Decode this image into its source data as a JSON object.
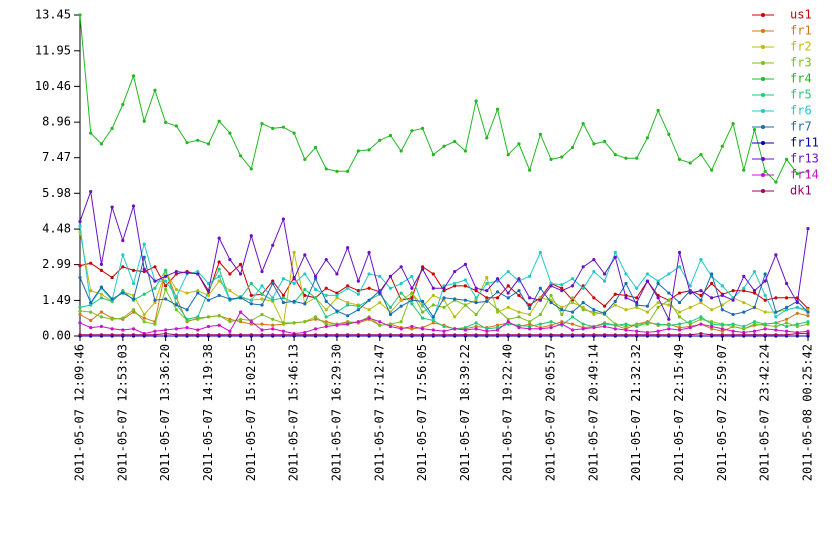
{
  "chart_data": {
    "type": "line",
    "categories": [
      "2011-05-07 12:09:46",
      null,
      null,
      null,
      "2011-05-07 12:53:03",
      null,
      null,
      null,
      "2011-05-07 13:36:20",
      null,
      null,
      null,
      "2011-05-07 14:19:38",
      null,
      null,
      null,
      "2011-05-07 15:02:55",
      null,
      null,
      null,
      "2011-05-07 15:46:13",
      null,
      null,
      null,
      "2011-05-07 16:29:30",
      null,
      null,
      null,
      "2011-05-07 17:12:47",
      null,
      null,
      null,
      "2011-05-07 17:56:05",
      null,
      null,
      null,
      "2011-05-07 18:39:22",
      null,
      null,
      null,
      "2011-05-07 19:22:40",
      null,
      null,
      null,
      "2011-05-07 20:05:57",
      null,
      null,
      null,
      "2011-05-07 20:49:14",
      null,
      null,
      null,
      "2011-05-07 21:32:32",
      null,
      null,
      null,
      "2011-05-07 22:15:49",
      null,
      null,
      null,
      "2011-05-07 22:59:07",
      null,
      null,
      null,
      "2011-05-07 23:42:24",
      null,
      null,
      null,
      "2011-05-08 00:25:42"
    ],
    "ylim": [
      0,
      13.45
    ],
    "yticks": [
      {
        "value": 0,
        "label": "0.00"
      },
      1.49,
      2.99,
      4.48,
      5.98,
      7.47,
      8.96,
      10.46,
      11.95,
      13.45
    ],
    "legend": "right",
    "series": [
      {
        "name": "us1",
        "color": "#cc0000",
        "values": [
          2.95,
          3.05,
          2.75,
          2.45,
          2.9,
          2.75,
          2.7,
          2.9,
          2.1,
          2.6,
          2.7,
          2.6,
          1.8,
          3.1,
          2.6,
          3.0,
          1.7,
          1.75,
          2.3,
          1.7,
          2.45,
          1.7,
          1.6,
          2.0,
          1.8,
          2.1,
          1.9,
          2.0,
          1.85,
          2.5,
          1.5,
          1.6,
          2.9,
          2.6,
          1.9,
          2.1,
          2.1,
          1.9,
          1.6,
          1.6,
          2.1,
          1.7,
          1.3,
          1.6,
          2.2,
          2.0,
          1.5,
          2.1,
          1.6,
          1.25,
          1.75,
          1.7,
          1.6,
          2.3,
          1.7,
          1.5,
          1.8,
          1.9,
          1.7,
          2.2,
          1.75,
          1.9,
          1.9,
          1.8,
          1.5,
          1.6,
          1.6,
          1.6,
          1.15
        ]
      },
      {
        "name": "fr1",
        "color": "#d07818",
        "values": [
          0.9,
          0.65,
          1.0,
          0.75,
          0.7,
          1.0,
          0.75,
          0.6,
          2.75,
          1.6,
          0.6,
          0.75,
          0.8,
          0.85,
          0.7,
          0.6,
          0.5,
          0.5,
          0.45,
          0.5,
          0.55,
          0.6,
          0.7,
          0.6,
          0.5,
          0.6,
          0.55,
          0.7,
          0.45,
          0.5,
          0.35,
          0.3,
          0.35,
          0.55,
          0.45,
          0.3,
          0.3,
          0.4,
          0.35,
          0.45,
          0.55,
          0.4,
          0.5,
          0.35,
          0.45,
          0.6,
          0.5,
          0.35,
          0.4,
          0.55,
          0.45,
          0.3,
          0.5,
          0.6,
          0.45,
          0.5,
          0.35,
          0.4,
          0.5,
          0.3,
          0.2,
          0.4,
          0.3,
          0.45,
          0.5,
          0.55,
          0.7,
          0.95,
          0.85
        ]
      },
      {
        "name": "fr2",
        "color": "#bcbc10",
        "values": [
          4.35,
          1.9,
          1.75,
          1.45,
          1.85,
          1.7,
          0.9,
          1.4,
          2.7,
          1.95,
          1.8,
          1.9,
          1.7,
          2.3,
          1.9,
          1.6,
          1.5,
          1.55,
          1.45,
          0.5,
          3.5,
          1.35,
          1.6,
          1.1,
          1.6,
          1.4,
          1.3,
          1.1,
          1.4,
          1.0,
          1.5,
          1.8,
          1.25,
          1.7,
          1.5,
          0.8,
          1.3,
          1.5,
          2.45,
          1.0,
          1.2,
          1.0,
          0.9,
          1.6,
          1.5,
          1.2,
          1.4,
          1.2,
          0.9,
          1.0,
          1.3,
          1.1,
          1.2,
          1.0,
          1.4,
          1.3,
          1.0,
          1.2,
          1.4,
          1.1,
          1.3,
          1.6,
          1.4,
          1.2,
          1.0,
          1.0,
          1.1,
          1.2,
          1.1
        ]
      },
      {
        "name": "fr3",
        "color": "#78c020",
        "values": [
          1.05,
          1.0,
          0.8,
          0.7,
          0.75,
          1.1,
          0.6,
          0.5,
          1.95,
          1.1,
          0.65,
          0.7,
          0.8,
          0.85,
          0.6,
          0.7,
          0.65,
          0.9,
          0.7,
          0.55,
          0.55,
          0.6,
          0.8,
          0.5,
          0.5,
          0.55,
          0.6,
          0.8,
          0.45,
          0.5,
          0.6,
          1.8,
          1.0,
          1.3,
          1.2,
          1.5,
          1.3,
          0.9,
          1.5,
          1.1,
          0.7,
          0.8,
          0.6,
          0.9,
          1.7,
          0.9,
          1.6,
          1.1,
          1.0,
          0.9,
          0.5,
          0.4,
          0.5,
          0.5,
          1.2,
          1.5,
          0.8,
          0.5,
          0.7,
          0.6,
          0.5,
          0.4,
          0.3,
          0.5,
          0.45,
          0.4,
          0.55,
          0.4,
          0.5
        ]
      },
      {
        "name": "fr4",
        "color": "#22b822",
        "values": [
          13.45,
          8.5,
          8.05,
          8.7,
          9.7,
          10.9,
          9.0,
          10.3,
          8.95,
          8.8,
          8.1,
          8.2,
          8.05,
          9.0,
          8.5,
          7.55,
          7.0,
          8.9,
          8.7,
          8.75,
          8.5,
          7.4,
          7.9,
          7.0,
          6.9,
          6.9,
          7.75,
          7.8,
          8.2,
          8.4,
          7.75,
          8.6,
          8.7,
          7.6,
          7.95,
          8.15,
          7.75,
          9.85,
          8.3,
          9.5,
          7.6,
          8.05,
          6.95,
          8.45,
          7.4,
          7.5,
          7.9,
          8.9,
          8.05,
          8.15,
          7.6,
          7.45,
          7.45,
          8.3,
          9.45,
          8.45,
          7.4,
          7.25,
          7.6,
          6.95,
          7.95,
          8.9,
          6.95,
          8.65,
          6.9,
          6.45,
          7.4,
          6.8,
          6.9
        ]
      },
      {
        "name": "fr5",
        "color": "#22c87a",
        "values": [
          1.2,
          1.3,
          1.6,
          1.45,
          1.9,
          1.5,
          1.75,
          2.0,
          2.75,
          1.35,
          0.7,
          0.8,
          1.9,
          2.8,
          1.5,
          1.6,
          2.2,
          1.75,
          1.5,
          1.6,
          1.4,
          1.95,
          1.6,
          0.8,
          1.0,
          1.3,
          1.25,
          1.5,
          1.75,
          1.2,
          1.8,
          1.35,
          0.75,
          0.65,
          0.4,
          0.3,
          0.35,
          0.55,
          0.3,
          0.35,
          0.5,
          0.45,
          0.4,
          0.5,
          0.6,
          0.45,
          0.8,
          0.5,
          0.4,
          0.5,
          0.45,
          0.5,
          0.4,
          0.55,
          0.5,
          0.45,
          0.5,
          0.6,
          0.8,
          0.5,
          0.45,
          0.5,
          0.4,
          0.6,
          0.5,
          0.55,
          0.4,
          0.5,
          0.6
        ]
      },
      {
        "name": "fr6",
        "color": "#22c8c8",
        "values": [
          4.6,
          1.35,
          2.0,
          1.5,
          3.4,
          2.2,
          3.85,
          2.3,
          2.3,
          1.65,
          2.6,
          2.7,
          2.2,
          2.5,
          1.5,
          1.65,
          1.5,
          2.1,
          1.6,
          2.4,
          2.2,
          2.6,
          1.95,
          1.7,
          1.7,
          2.0,
          1.75,
          2.6,
          2.5,
          2.0,
          2.2,
          2.5,
          1.3,
          0.7,
          2.1,
          2.2,
          2.35,
          1.6,
          2.2,
          2.3,
          2.7,
          2.3,
          2.5,
          3.5,
          2.2,
          2.15,
          2.4,
          2.0,
          2.7,
          2.3,
          3.5,
          2.6,
          2.0,
          2.6,
          2.3,
          2.6,
          2.9,
          2.1,
          3.2,
          2.5,
          2.1,
          1.6,
          2.0,
          2.7,
          1.7,
          0.8,
          1.1,
          1.2,
          1.0
        ]
      },
      {
        "name": "fr7",
        "color": "#1a6cb0",
        "values": [
          2.45,
          1.4,
          2.05,
          1.55,
          1.8,
          1.55,
          3.3,
          1.5,
          1.55,
          1.3,
          1.1,
          1.8,
          1.5,
          1.7,
          1.55,
          1.6,
          1.35,
          1.3,
          2.2,
          1.4,
          1.45,
          1.35,
          2.4,
          1.45,
          1.05,
          0.85,
          1.1,
          1.5,
          1.9,
          0.9,
          1.25,
          1.5,
          1.45,
          0.8,
          1.6,
          1.55,
          1.5,
          1.4,
          1.45,
          1.85,
          1.6,
          1.9,
          1.15,
          2.0,
          1.4,
          1.1,
          1.0,
          1.4,
          1.1,
          0.95,
          1.45,
          2.2,
          1.3,
          1.25,
          2.2,
          1.8,
          1.4,
          1.9,
          1.5,
          2.6,
          1.1,
          0.9,
          1.0,
          1.2,
          2.6,
          1.0,
          1.2,
          1.45,
          1.0
        ]
      },
      {
        "name": "fr11",
        "color": "#0000a8",
        "values": [
          0,
          0,
          0,
          0,
          0,
          0,
          0,
          0,
          0,
          0,
          0,
          0,
          0,
          0,
          0,
          0,
          0,
          0,
          0,
          0,
          0,
          0,
          0,
          0,
          0,
          0,
          0,
          0,
          0,
          0,
          0,
          0,
          0,
          0,
          0,
          0,
          0,
          0,
          0,
          0,
          0,
          0,
          0,
          0,
          0,
          0,
          0,
          0,
          0,
          0,
          0,
          0,
          0,
          0,
          0,
          0,
          0,
          0,
          0,
          0,
          0,
          0,
          0,
          0,
          0,
          0,
          0,
          0,
          0
        ]
      },
      {
        "name": "fr13",
        "color": "#6a10c8",
        "values": [
          4.8,
          6.05,
          3.0,
          5.4,
          4.0,
          5.45,
          2.8,
          2.3,
          2.5,
          2.7,
          2.65,
          2.6,
          1.9,
          4.1,
          3.2,
          2.6,
          4.2,
          2.7,
          3.8,
          4.9,
          2.4,
          3.4,
          2.5,
          3.2,
          2.6,
          3.7,
          2.3,
          3.5,
          1.8,
          2.5,
          2.9,
          2.0,
          2.8,
          2.0,
          2.0,
          2.7,
          3.0,
          2.0,
          1.9,
          2.4,
          1.8,
          2.4,
          1.6,
          1.5,
          2.1,
          1.9,
          2.1,
          2.9,
          3.2,
          2.6,
          3.3,
          1.6,
          1.4,
          2.3,
          1.6,
          0.7,
          3.5,
          1.8,
          1.9,
          1.6,
          1.7,
          1.5,
          2.5,
          1.9,
          2.3,
          3.4,
          2.2,
          1.4,
          4.5
        ]
      },
      {
        "name": "fr14",
        "color": "#cc10cc",
        "values": [
          0.55,
          0.35,
          0.4,
          0.3,
          0.25,
          0.3,
          0.1,
          0.2,
          0.25,
          0.3,
          0.35,
          0.25,
          0.4,
          0.45,
          0.2,
          1.0,
          0.6,
          0.25,
          0.3,
          0.2,
          0.1,
          0.15,
          0.3,
          0.4,
          0.45,
          0.5,
          0.6,
          0.75,
          0.6,
          0.4,
          0.3,
          0.4,
          0.3,
          0.25,
          0.2,
          0.3,
          0.25,
          0.3,
          0.2,
          0.25,
          0.6,
          0.35,
          0.3,
          0.3,
          0.35,
          0.5,
          0.25,
          0.3,
          0.35,
          0.4,
          0.3,
          0.25,
          0.2,
          0.15,
          0.2,
          0.3,
          0.25,
          0.35,
          0.5,
          0.4,
          0.3,
          0.2,
          0.15,
          0.2,
          0.3,
          0.25,
          0.2,
          0.15,
          0.2
        ]
      },
      {
        "name": "dk1",
        "color": "#990066",
        "values": [
          0.05,
          0.05,
          0.05,
          0.05,
          0.05,
          0.05,
          0.05,
          0.05,
          0.1,
          0.05,
          0.05,
          0.05,
          0.05,
          0.05,
          0.05,
          0.05,
          0.05,
          0.05,
          0.05,
          0.05,
          0.05,
          0.05,
          0.05,
          0.05,
          0.05,
          0.05,
          0.05,
          0.05,
          0.05,
          0.05,
          0.05,
          0.05,
          0.05,
          0.05,
          0.05,
          0.05,
          0.05,
          0.05,
          0.05,
          0.05,
          0.05,
          0.05,
          0.05,
          0.05,
          0.05,
          0.05,
          0.05,
          0.05,
          0.05,
          0.05,
          0.05,
          0.05,
          0.05,
          0.05,
          0.05,
          0.05,
          0.05,
          0.05,
          0.1,
          0.05,
          0.05,
          0.05,
          0.05,
          0.05,
          0.05,
          0.05,
          0.05,
          0.1,
          0.1
        ]
      }
    ]
  }
}
